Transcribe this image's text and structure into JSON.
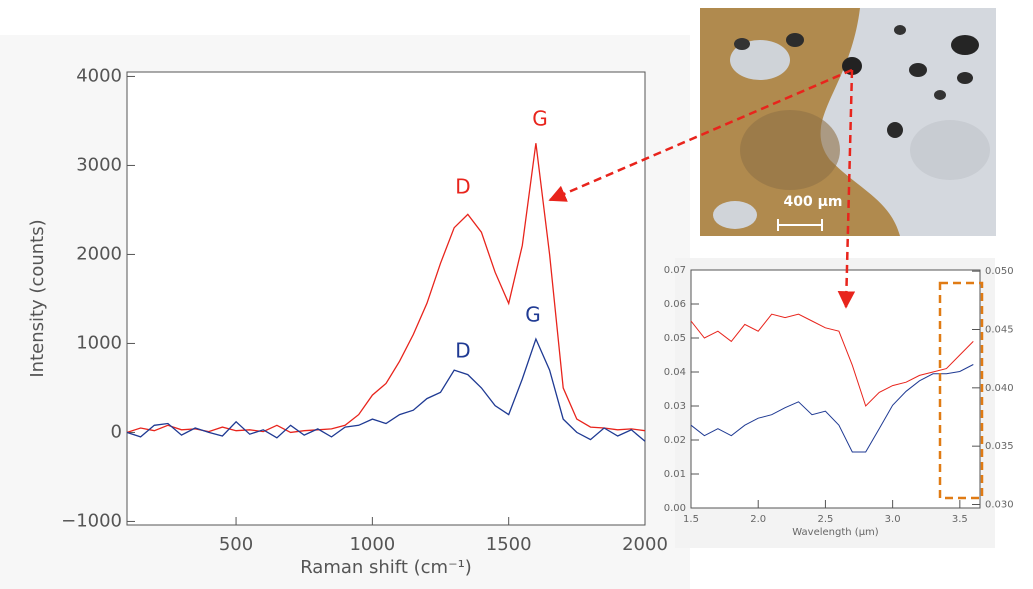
{
  "chart_data": [
    {
      "type": "line",
      "x_label": "Raman shift (cm⁻¹)",
      "y_label": "Intensity (counts)",
      "x": [
        100,
        150,
        200,
        250,
        300,
        350,
        400,
        450,
        500,
        550,
        600,
        650,
        700,
        750,
        800,
        850,
        900,
        950,
        1000,
        1050,
        1100,
        1150,
        1200,
        1250,
        1300,
        1350,
        1400,
        1450,
        1500,
        1550,
        1600,
        1650,
        1700,
        1750,
        1800,
        1850,
        1900,
        1950,
        2000
      ],
      "series": [
        {
          "color": "#e8241c",
          "values": [
            0,
            50,
            20,
            80,
            30,
            40,
            10,
            60,
            20,
            30,
            10,
            80,
            0,
            20,
            30,
            40,
            80,
            200,
            420,
            550,
            800,
            1100,
            1450,
            1900,
            2300,
            2450,
            2250,
            1800,
            1450,
            2100,
            3250,
            2000,
            500,
            150,
            60,
            50,
            30,
            40,
            20
          ]
        },
        {
          "color": "#1f3a93",
          "values": [
            0,
            -50,
            80,
            100,
            -30,
            50,
            0,
            -40,
            120,
            -20,
            30,
            -60,
            80,
            -30,
            40,
            -50,
            60,
            80,
            150,
            100,
            200,
            250,
            380,
            450,
            700,
            650,
            500,
            300,
            200,
            600,
            1050,
            700,
            150,
            0,
            -80,
            50,
            -40,
            30,
            -100
          ]
        }
      ],
      "xlim": [
        100,
        2000
      ],
      "xticks": [
        500,
        1000,
        1500,
        2000
      ],
      "ylim": [
        -1040,
        4050
      ],
      "yticks": [
        {
          "value": -1000,
          "label": "−1000"
        },
        0,
        1000,
        2000,
        3000,
        4000
      ],
      "annotations": [
        {
          "text": "D",
          "color": "#e8241c"
        },
        {
          "text": "G",
          "color": "#e8241c"
        },
        {
          "text": "D",
          "color": "#1f3a93"
        },
        {
          "text": "G",
          "color": "#1f3a93"
        }
      ]
    },
    {
      "type": "line",
      "x_label": "Wavelength (μm)",
      "x": [
        1.5,
        1.6,
        1.7,
        1.8,
        1.9,
        2.0,
        2.1,
        2.2,
        2.3,
        2.4,
        2.5,
        2.6,
        2.7,
        2.8,
        2.9,
        3.0,
        3.1,
        3.2,
        3.3,
        3.4,
        3.5,
        3.6
      ],
      "series": [
        {
          "color": "#e8241c",
          "values": [
            0.055,
            0.05,
            0.052,
            0.049,
            0.054,
            0.052,
            0.057,
            0.056,
            0.057,
            0.055,
            0.053,
            0.052,
            0.042,
            0.03,
            0.034,
            0.036,
            0.037,
            0.039,
            0.04,
            0.041,
            0.045,
            0.049
          ]
        },
        {
          "color": "#1f3a93",
          "axis": "y2",
          "values": [
            0.0368,
            0.0359,
            0.0365,
            0.0359,
            0.0368,
            0.0374,
            0.0377,
            0.0383,
            0.0388,
            0.0377,
            0.038,
            0.0368,
            0.0345,
            0.0345,
            0.0365,
            0.0385,
            0.0397,
            0.0406,
            0.0412,
            0.0412,
            0.0414,
            0.042
          ]
        }
      ],
      "xlim": [
        1.5,
        3.65
      ],
      "xticks": [
        1.5,
        {
          "value": 2.0,
          "label": "2.0"
        },
        2.5,
        {
          "value": 3.0,
          "label": "3.0"
        },
        3.5
      ],
      "ylim": [
        0,
        0.07
      ],
      "yticks": [
        {
          "value": 0,
          "label": "0.00"
        },
        {
          "value": 0.01,
          "label": "0.01"
        },
        {
          "value": 0.02,
          "label": "0.02"
        },
        {
          "value": 0.03,
          "label": "0.03"
        },
        {
          "value": 0.04,
          "label": "0.04"
        },
        {
          "value": 0.05,
          "label": "0.05"
        },
        {
          "value": 0.06,
          "label": "0.06"
        },
        {
          "value": 0.07,
          "label": "0.07"
        }
      ],
      "y2lim": [
        0.0297,
        0.0501
      ],
      "y2ticks": [
        {
          "value": 0.03,
          "label": "0.030"
        },
        {
          "value": 0.035,
          "label": "0.035"
        },
        {
          "value": 0.04,
          "label": "0.040"
        },
        {
          "value": 0.045,
          "label": "0.045"
        },
        {
          "value": 0.05,
          "label": "0.050"
        }
      ]
    }
  ],
  "image": {
    "scale_label": "400 µm"
  }
}
